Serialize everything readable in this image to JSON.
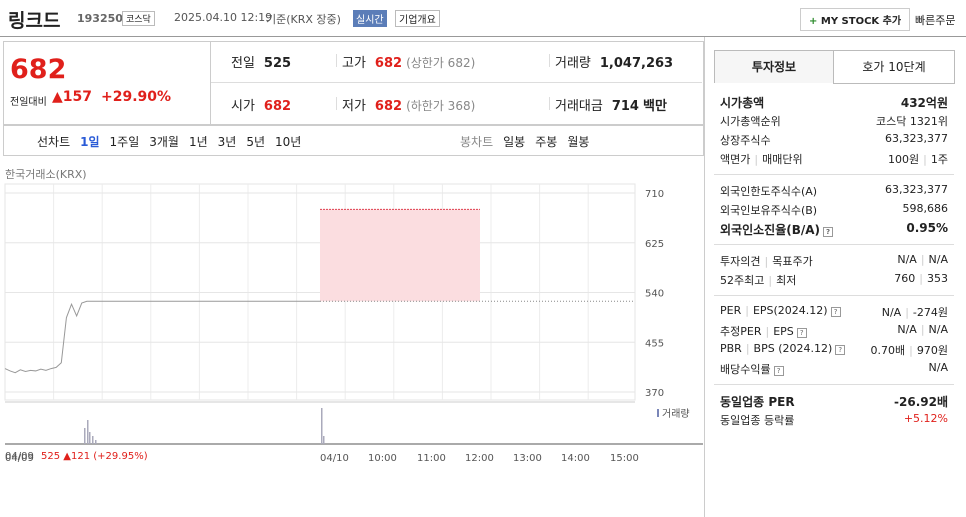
{
  "header": {
    "name": "링크드",
    "code": "193250",
    "market": "코스닥",
    "datetime": "2025.04.10 12:19",
    "basis": "기준(KRX 장중)",
    "realtime": "실시간",
    "company": "기업개요",
    "mystock": "MY STOCK 추가",
    "quick": "빠른주문"
  },
  "quote": {
    "price": 682,
    "change_label": "전일대비",
    "change": 157,
    "rate": "+29.90%"
  },
  "stats": [
    {
      "label": "전일",
      "value": 525
    },
    {
      "label": "고가",
      "value": 682,
      "note": "(상한가 682)"
    },
    {
      "label": "거래량",
      "value": "1,047,263"
    },
    {
      "label": "시가",
      "value": 682
    },
    {
      "label": "저가",
      "value": 682,
      "note": "(하한가 368)"
    },
    {
      "label": "거래대금",
      "value": "714",
      "unit": "백만"
    }
  ],
  "tabs": {
    "line": "선차트",
    "periods": [
      "1일",
      "1주일",
      "3개월",
      "1년",
      "3년",
      "5년",
      "10년"
    ],
    "candle": "봉차트",
    "candles": [
      "일봉",
      "주봉",
      "월봉"
    ]
  },
  "chart": {
    "source": "한국거래소(KRX)",
    "ylim": [
      370,
      710
    ],
    "yticks": [
      370,
      455,
      540,
      625,
      710
    ],
    "xlabels": [
      "04/09",
      "04/10",
      "10:00",
      "11:00",
      "12:00",
      "13:00",
      "14:00",
      "15:00"
    ],
    "prev_values": [
      410,
      406,
      403,
      408,
      405,
      407,
      406,
      409,
      407,
      410,
      412,
      420,
      497,
      520,
      500,
      522,
      525,
      525
    ],
    "volume_label": "거래량"
  },
  "footer": {
    "date": "04/09",
    "price": 525,
    "change": "121",
    "rate": "(+29.95%)"
  },
  "side": {
    "tabs": [
      "투자정보",
      "호가 10단계"
    ],
    "sections": [
      [
        {
          "label": [
            "시가총액"
          ],
          "value": [
            "432억원"
          ],
          "bold": true
        },
        {
          "label": [
            "시가총액순위"
          ],
          "value": [
            "코스닥 1321위"
          ]
        },
        {
          "label": [
            "상장주식수"
          ],
          "value": [
            "63,323,377"
          ]
        },
        {
          "label": [
            "액면가",
            "매매단위"
          ],
          "value": [
            "100원",
            "1주"
          ]
        }
      ],
      [
        {
          "label": [
            "외국인한도주식수(A)"
          ],
          "value": [
            "63,323,377"
          ]
        },
        {
          "label": [
            "외국인보유주식수(B)"
          ],
          "value": [
            "598,686"
          ]
        },
        {
          "label": [
            "외국인소진율(B/A)"
          ],
          "value": [
            "0.95%"
          ],
          "bold": true,
          "help": true
        }
      ],
      [
        {
          "label": [
            "투자의견",
            "목표주가"
          ],
          "value": [
            "N/A",
            "N/A"
          ]
        },
        {
          "label": [
            "52주최고",
            "최저"
          ],
          "value": [
            "760",
            "353"
          ]
        }
      ],
      [
        {
          "label": [
            "PER",
            "EPS(2024.12)"
          ],
          "value": [
            "N/A",
            "-274원"
          ],
          "help": true
        },
        {
          "label": [
            "추정PER",
            "EPS"
          ],
          "value": [
            "N/A",
            "N/A"
          ],
          "help": true
        },
        {
          "label": [
            "PBR",
            "BPS (2024.12)"
          ],
          "value": [
            "0.70배",
            "970원"
          ],
          "help": true
        },
        {
          "label": [
            "배당수익률"
          ],
          "value": [
            "N/A"
          ],
          "help": true
        }
      ],
      [
        {
          "label": [
            "동일업종 PER"
          ],
          "value": [
            "-26.92배"
          ],
          "bold": true
        },
        {
          "label": [
            "동일업종 등락률"
          ],
          "value": [
            "+5.12%"
          ],
          "red": true
        }
      ]
    ]
  }
}
